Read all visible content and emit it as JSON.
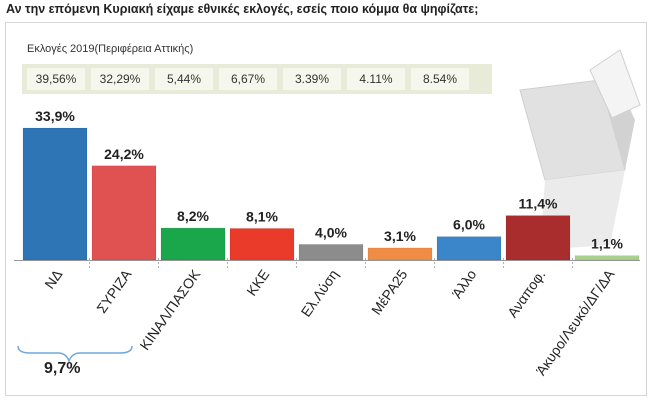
{
  "title": "Αν την επόμενη Κυριακή είχαμε εθνικές εκλογές, εσείς ποιο κόμμα θα ψηφίζατε;",
  "elections_2019": {
    "label": "Εκλογές 2019(Περιφέρεια Αττικής)",
    "values": [
      "39,56%",
      "32,29%",
      "5,44%",
      "6,67%",
      "3.39%",
      "4.11%",
      "8.54%"
    ]
  },
  "brace_total": "9,7%",
  "chart_data": {
    "type": "bar",
    "title": "",
    "xlabel": "",
    "ylabel": "",
    "ylim": [
      0,
      36
    ],
    "grid": false,
    "categories": [
      "ΝΔ",
      "ΣΥΡΙΖΑ",
      "ΚΙΝΑΛ/ΠΑΣΟΚ",
      "ΚΚΕ",
      "Ελ.Λύση",
      "ΜέΡΑ25",
      "Άλλο",
      "Αναποφ.",
      "Άκυρο/Λευκό/ΔΓ/ΔΑ"
    ],
    "values": [
      33.9,
      24.2,
      8.2,
      8.1,
      4.0,
      3.1,
      6.0,
      11.4,
      1.1
    ],
    "value_labels": [
      "33,9%",
      "24,2%",
      "8,2%",
      "8,1%",
      "4,0%",
      "3,1%",
      "6,0%",
      "11,4%",
      "1,1%"
    ],
    "colors": [
      "#2e75b6",
      "#e05252",
      "#1aa64b",
      "#ea3a2a",
      "#8c8c8c",
      "#f08d45",
      "#3a86c8",
      "#a92d2d",
      "#a9d18e"
    ]
  }
}
